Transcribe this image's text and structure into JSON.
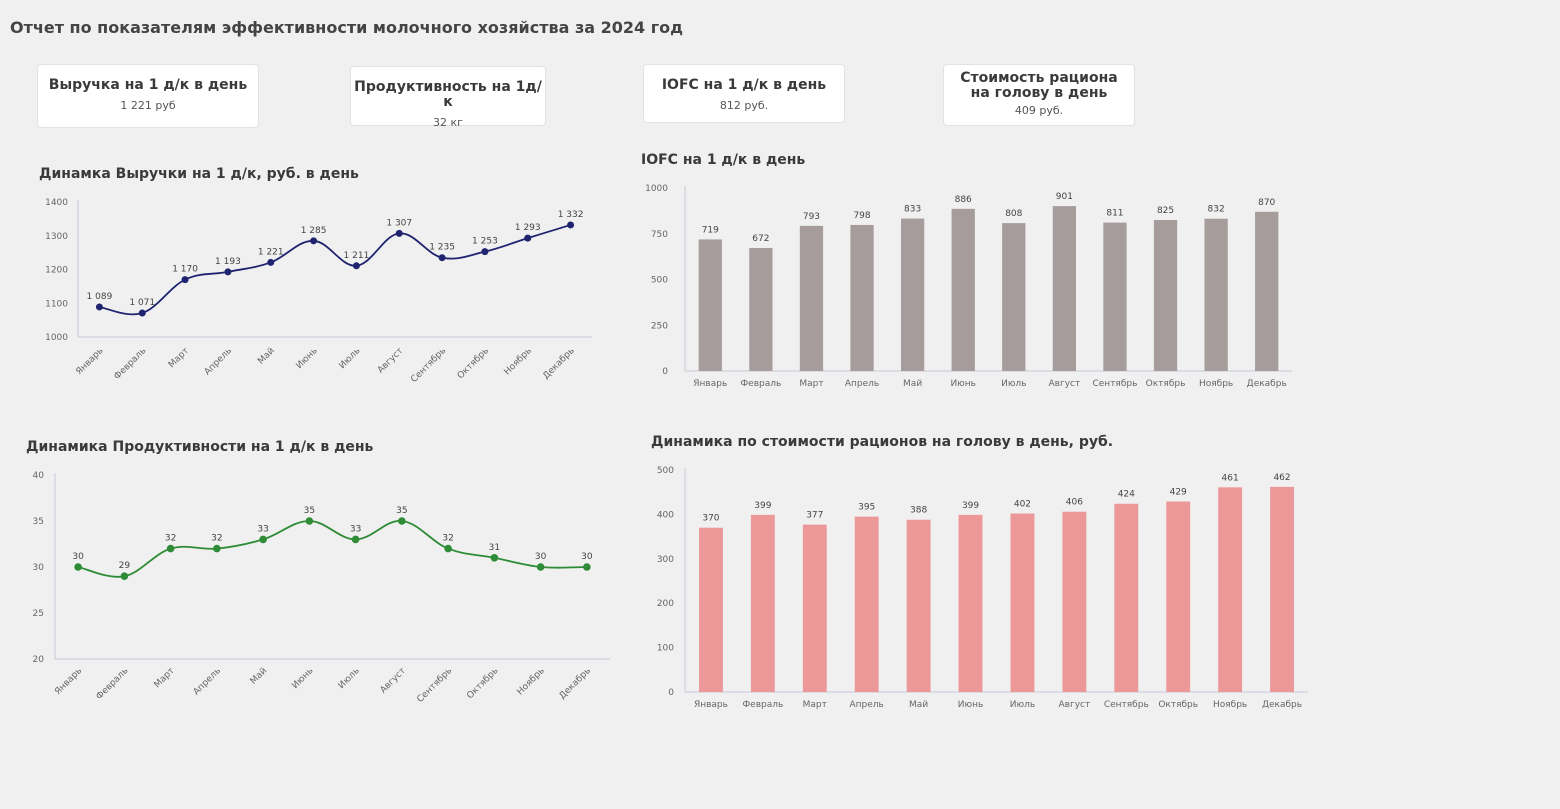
{
  "title": "Отчет по показателям эффективности молочного хозяйства за 2024 год",
  "kpis": [
    {
      "label": "Выручка на 1 д/к в день",
      "value": "1 221 руб"
    },
    {
      "label": "Продуктивность на 1д/к",
      "value": "32 кг"
    },
    {
      "label": "IOFC на 1 д/к в день",
      "value": "812 руб."
    },
    {
      "label": "Стоимость рациона на голову в день",
      "value": "409 руб."
    }
  ],
  "colors": {
    "revenue": "#1f2370",
    "productivity": "#2e8b36",
    "iofc": "#a59c9b",
    "ration": "#ec9899",
    "axis": "#c9c9d9"
  },
  "chart_data": [
    {
      "id": "revenue",
      "type": "line",
      "title": "Динамка Выручки на 1 д/к, руб. в день",
      "categories": [
        "Январь",
        "Февраль",
        "Март",
        "Апрель",
        "Май",
        "Июнь",
        "Июль",
        "Август",
        "Сентябрь",
        "Октябрь",
        "Ноябрь",
        "Декабрь"
      ],
      "values": [
        1089,
        1071,
        1170,
        1193,
        1221,
        1285,
        1211,
        1307,
        1235,
        1253,
        1293,
        1332
      ],
      "labels": [
        "1 089",
        "1 071",
        "1 170",
        "1 193",
        "1 221",
        "1 285",
        "1 211",
        "1 307",
        "1 235",
        "1 253",
        "1 293",
        "1 332"
      ],
      "ylim": [
        1000,
        1400
      ],
      "yticks": [
        "1000",
        "1100",
        "1200",
        "1300",
        "1400"
      ]
    },
    {
      "id": "iofc",
      "type": "bar",
      "title": "IOFC на 1 д/к в день",
      "categories": [
        "Январь",
        "Февраль",
        "Март",
        "Апрель",
        "Май",
        "Июнь",
        "Июль",
        "Август",
        "Сентябрь",
        "Октябрь",
        "Ноябрь",
        "Декабрь"
      ],
      "values": [
        719,
        672,
        793,
        798,
        833,
        886,
        808,
        901,
        811,
        825,
        832,
        870
      ],
      "labels": [
        "719",
        "672",
        "793",
        "798",
        "833",
        "886",
        "808",
        "901",
        "811",
        "825",
        "832",
        "870"
      ],
      "ylim": [
        0,
        1000
      ],
      "yticks": [
        "0",
        "250",
        "500",
        "750",
        "1000"
      ]
    },
    {
      "id": "productivity",
      "type": "line",
      "title": "Динамика Продуктивности на 1 д/к в день",
      "categories": [
        "Январь",
        "Февраль",
        "Март",
        "Апрель",
        "Май",
        "Июнь",
        "Июль",
        "Август",
        "Сентябрь",
        "Октябрь",
        "Ноябрь",
        "Декабрь"
      ],
      "values": [
        30,
        29,
        32,
        32,
        33,
        35,
        33,
        35,
        32,
        31,
        30,
        30
      ],
      "labels": [
        "30",
        "29",
        "32",
        "32",
        "33",
        "35",
        "33",
        "35",
        "32",
        "31",
        "30",
        "30"
      ],
      "ylim": [
        20,
        40
      ],
      "yticks": [
        "20",
        "25",
        "30",
        "35",
        "40"
      ]
    },
    {
      "id": "ration",
      "type": "bar",
      "title": "Динамика по стоимости рационов на голову в день, руб.",
      "categories": [
        "Январь",
        "Февраль",
        "Март",
        "Апрель",
        "Май",
        "Июнь",
        "Июль",
        "Август",
        "Сентябрь",
        "Октябрь",
        "Ноябрь",
        "Декабрь"
      ],
      "values": [
        370,
        399,
        377,
        395,
        388,
        399,
        402,
        406,
        424,
        429,
        461,
        462
      ],
      "labels": [
        "370",
        "399",
        "377",
        "395",
        "388",
        "399",
        "402",
        "406",
        "424",
        "429",
        "461",
        "462"
      ],
      "ylim": [
        0,
        500
      ],
      "yticks": [
        "0",
        "100",
        "200",
        "300",
        "400",
        "500"
      ]
    }
  ]
}
